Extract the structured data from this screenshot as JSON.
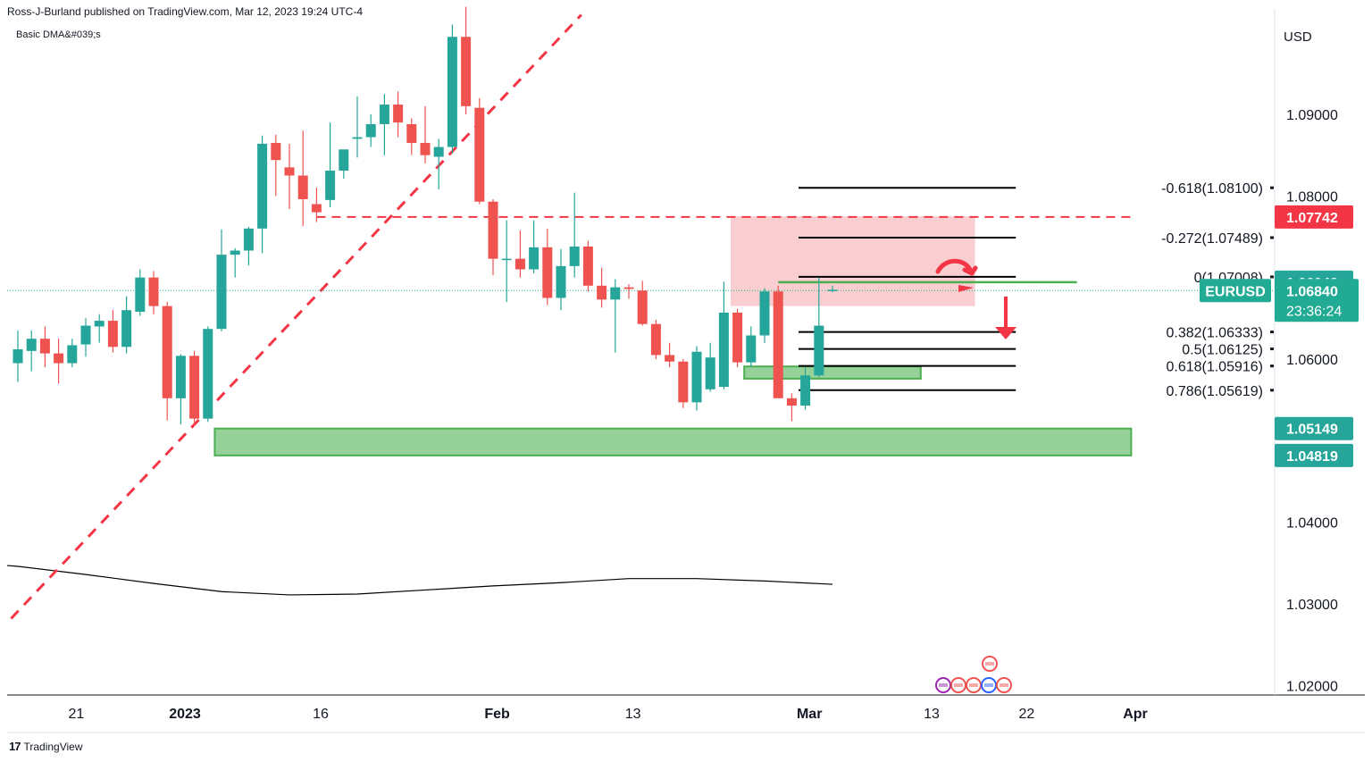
{
  "header": {
    "published": "Ross-J-Burland published on TradingView.com, Mar 12, 2023 19:24 UTC-4",
    "study": "Basic DMA&#039;s",
    "currency": "USD",
    "footer": "TradingView"
  },
  "colors": {
    "up": "#26a69a",
    "down": "#ef5350",
    "level_red": "#f23645",
    "zone_green": "#4caf50",
    "zone_red": "#f7c6c9",
    "ma": "#000000",
    "eurusd": "#22ab94"
  },
  "chart_data": {
    "type": "candlestick",
    "title": "",
    "symbol": "EURUSD",
    "timeframe": "daily",
    "ylim": [
      1.0175,
      1.1048
    ],
    "y_ticks": [
      {
        "value": 1.09,
        "label": "1.09000"
      },
      {
        "value": 1.08,
        "label": "1.08000"
      },
      {
        "value": 1.06,
        "label": "1.06000"
      },
      {
        "value": 1.04,
        "label": "1.04000"
      },
      {
        "value": 1.03,
        "label": "1.03000"
      },
      {
        "value": 1.02,
        "label": "1.02000"
      }
    ],
    "x_ticks": [
      {
        "index": 2,
        "label": "21"
      },
      {
        "index": 10,
        "label": "2023"
      },
      {
        "index": 20,
        "label": "16"
      },
      {
        "index": 33,
        "label": "Feb"
      },
      {
        "index": 43,
        "label": "13"
      },
      {
        "index": 56,
        "label": "Mar"
      },
      {
        "index": 65,
        "label": "13"
      },
      {
        "index": 72,
        "label": "22"
      },
      {
        "index": 80,
        "label": "Apr"
      }
    ],
    "candles": [
      {
        "i": 0,
        "o": 1.0595,
        "h": 1.0635,
        "l": 1.0572,
        "c": 1.0612
      },
      {
        "i": 1,
        "o": 1.061,
        "h": 1.0635,
        "l": 1.0585,
        "c": 1.0625
      },
      {
        "i": 2,
        "o": 1.0625,
        "h": 1.064,
        "l": 1.059,
        "c": 1.0607
      },
      {
        "i": 3,
        "o": 1.0607,
        "h": 1.0625,
        "l": 1.057,
        "c": 1.0595
      },
      {
        "i": 4,
        "o": 1.0595,
        "h": 1.0625,
        "l": 1.059,
        "c": 1.0617
      },
      {
        "i": 5,
        "o": 1.0618,
        "h": 1.065,
        "l": 1.0603,
        "c": 1.0641
      },
      {
        "i": 6,
        "o": 1.064,
        "h": 1.0655,
        "l": 1.062,
        "c": 1.0647
      },
      {
        "i": 7,
        "o": 1.0647,
        "h": 1.066,
        "l": 1.0608,
        "c": 1.0615
      },
      {
        "i": 8,
        "o": 1.0615,
        "h": 1.0677,
        "l": 1.0607,
        "c": 1.066
      },
      {
        "i": 9,
        "o": 1.0658,
        "h": 1.071,
        "l": 1.0653,
        "c": 1.07
      },
      {
        "i": 10,
        "o": 1.07,
        "h": 1.0708,
        "l": 1.0655,
        "c": 1.0665
      },
      {
        "i": 11,
        "o": 1.0665,
        "h": 1.067,
        "l": 1.0525,
        "c": 1.0552
      },
      {
        "i": 12,
        "o": 1.0552,
        "h": 1.0606,
        "l": 1.052,
        "c": 1.0604
      },
      {
        "i": 13,
        "o": 1.0604,
        "h": 1.061,
        "l": 1.0518,
        "c": 1.0527
      },
      {
        "i": 14,
        "o": 1.0527,
        "h": 1.064,
        "l": 1.0523,
        "c": 1.0637
      },
      {
        "i": 15,
        "o": 1.0637,
        "h": 1.0759,
        "l": 1.0634,
        "c": 1.0728
      },
      {
        "i": 16,
        "o": 1.0728,
        "h": 1.0736,
        "l": 1.07,
        "c": 1.0733
      },
      {
        "i": 17,
        "o": 1.0733,
        "h": 1.0762,
        "l": 1.0715,
        "c": 1.076
      },
      {
        "i": 18,
        "o": 1.076,
        "h": 1.0874,
        "l": 1.073,
        "c": 1.0864
      },
      {
        "i": 19,
        "o": 1.0865,
        "h": 1.0875,
        "l": 1.08,
        "c": 1.0844
      },
      {
        "i": 20,
        "o": 1.0835,
        "h": 1.0864,
        "l": 1.0784,
        "c": 1.0825
      },
      {
        "i": 21,
        "o": 1.0825,
        "h": 1.088,
        "l": 1.0763,
        "c": 1.0796
      },
      {
        "i": 22,
        "o": 1.079,
        "h": 1.081,
        "l": 1.0768,
        "c": 1.078
      },
      {
        "i": 23,
        "o": 1.0795,
        "h": 1.089,
        "l": 1.0786,
        "c": 1.0831
      },
      {
        "i": 24,
        "o": 1.0831,
        "h": 1.0855,
        "l": 1.0821,
        "c": 1.0857
      },
      {
        "i": 25,
        "o": 1.087,
        "h": 1.0922,
        "l": 1.0847,
        "c": 1.0872
      },
      {
        "i": 26,
        "o": 1.0872,
        "h": 1.09,
        "l": 1.086,
        "c": 1.0888
      },
      {
        "i": 27,
        "o": 1.0888,
        "h": 1.0925,
        "l": 1.085,
        "c": 1.0912
      },
      {
        "i": 28,
        "o": 1.0912,
        "h": 1.0928,
        "l": 1.0872,
        "c": 1.089
      },
      {
        "i": 29,
        "o": 1.0888,
        "h": 1.0895,
        "l": 1.085,
        "c": 1.0865
      },
      {
        "i": 30,
        "o": 1.0865,
        "h": 1.091,
        "l": 1.084,
        "c": 1.085
      },
      {
        "i": 31,
        "o": 1.0848,
        "h": 1.087,
        "l": 1.0808,
        "c": 1.086
      },
      {
        "i": 32,
        "o": 1.086,
        "h": 1.101,
        "l": 1.0852,
        "c": 1.0995
      },
      {
        "i": 33,
        "o": 1.0995,
        "h": 1.1032,
        "l": 1.09,
        "c": 1.091
      },
      {
        "i": 34,
        "o": 1.0908,
        "h": 1.092,
        "l": 1.079,
        "c": 1.0793
      },
      {
        "i": 35,
        "o": 1.0793,
        "h": 1.0796,
        "l": 1.0703,
        "c": 1.0723
      },
      {
        "i": 36,
        "o": 1.0723,
        "h": 1.077,
        "l": 1.067,
        "c": 1.0723
      },
      {
        "i": 37,
        "o": 1.0723,
        "h": 1.0758,
        "l": 1.07,
        "c": 1.071
      },
      {
        "i": 38,
        "o": 1.071,
        "h": 1.077,
        "l": 1.0705,
        "c": 1.0737
      },
      {
        "i": 39,
        "o": 1.0737,
        "h": 1.076,
        "l": 1.0666,
        "c": 1.0675
      },
      {
        "i": 40,
        "o": 1.0675,
        "h": 1.0735,
        "l": 1.066,
        "c": 1.0714
      },
      {
        "i": 41,
        "o": 1.0714,
        "h": 1.0804,
        "l": 1.07,
        "c": 1.0738
      },
      {
        "i": 42,
        "o": 1.0738,
        "h": 1.0745,
        "l": 1.0683,
        "c": 1.069
      },
      {
        "i": 43,
        "o": 1.069,
        "h": 1.0712,
        "l": 1.0663,
        "c": 1.0673
      },
      {
        "i": 44,
        "o": 1.0673,
        "h": 1.0698,
        "l": 1.0608,
        "c": 1.0688
      },
      {
        "i": 45,
        "o": 1.0688,
        "h": 1.0692,
        "l": 1.0674,
        "c": 1.0686
      },
      {
        "i": 46,
        "o": 1.0684,
        "h": 1.0696,
        "l": 1.0641,
        "c": 1.0643
      },
      {
        "i": 47,
        "o": 1.0643,
        "h": 1.0648,
        "l": 1.06,
        "c": 1.0605
      },
      {
        "i": 48,
        "o": 1.0605,
        "h": 1.062,
        "l": 1.059,
        "c": 1.0597
      },
      {
        "i": 49,
        "o": 1.0597,
        "h": 1.06,
        "l": 1.054,
        "c": 1.0547
      },
      {
        "i": 50,
        "o": 1.0547,
        "h": 1.0616,
        "l": 1.0537,
        "c": 1.0609
      },
      {
        "i": 51,
        "o": 1.0563,
        "h": 1.062,
        "l": 1.056,
        "c": 1.0602
      },
      {
        "i": 52,
        "o": 1.0566,
        "h": 1.0695,
        "l": 1.0563,
        "c": 1.0657
      },
      {
        "i": 53,
        "o": 1.0657,
        "h": 1.0662,
        "l": 1.059,
        "c": 1.0596
      },
      {
        "i": 54,
        "o": 1.0596,
        "h": 1.064,
        "l": 1.059,
        "c": 1.0629
      },
      {
        "i": 55,
        "o": 1.0629,
        "h": 1.0687,
        "l": 1.062,
        "c": 1.0683
      },
      {
        "i": 56,
        "o": 1.0683,
        "h": 1.069,
        "l": 1.0553,
        "c": 1.0552
      },
      {
        "i": 57,
        "o": 1.0552,
        "h": 1.0558,
        "l": 1.0524,
        "c": 1.0543
      },
      {
        "i": 58,
        "o": 1.0543,
        "h": 1.059,
        "l": 1.0538,
        "c": 1.058
      },
      {
        "i": 59,
        "o": 1.058,
        "h": 1.07,
        "l": 1.0578,
        "c": 1.0641
      },
      {
        "i": 60,
        "o": 1.0684,
        "h": 1.069,
        "l": 1.0682,
        "c": 1.0685
      }
    ],
    "moving_average": {
      "name": "Basic DMA&#039;s",
      "points": [
        {
          "i": 0,
          "v": 1.0346
        },
        {
          "i": 5,
          "v": 1.0336
        },
        {
          "i": 10,
          "v": 1.0325
        },
        {
          "i": 15,
          "v": 1.0315
        },
        {
          "i": 20,
          "v": 1.0311
        },
        {
          "i": 25,
          "v": 1.0312
        },
        {
          "i": 30,
          "v": 1.0317
        },
        {
          "i": 35,
          "v": 1.0322
        },
        {
          "i": 40,
          "v": 1.0326
        },
        {
          "i": 45,
          "v": 1.0331
        },
        {
          "i": 50,
          "v": 1.0331
        },
        {
          "i": 55,
          "v": 1.0328
        },
        {
          "i": 60,
          "v": 1.0324
        }
      ]
    },
    "trendline": {
      "from": {
        "i": -0.5,
        "v": 1.0282
      },
      "to": {
        "i": 41.5,
        "v": 1.1022
      },
      "style": "dashed"
    },
    "horizontal_lines": [
      {
        "value": 1.07742,
        "from_i": 22,
        "to_i": 82,
        "style": "dashed",
        "color": "#f23645"
      },
      {
        "value": 1.06943,
        "from_i": 56,
        "to_i": 78,
        "style": "solid",
        "color": "#4caf50"
      }
    ],
    "zones": [
      {
        "top": 1.05149,
        "bottom": 1.04819,
        "from_i": 14.5,
        "to_i": 82,
        "color": "green"
      },
      {
        "top": 1.0591,
        "bottom": 1.0576,
        "from_i": 53.5,
        "to_i": 66.5,
        "color": "green"
      },
      {
        "top": 1.0775,
        "bottom": 1.0665,
        "from_i": 52.5,
        "to_i": 70.5,
        "color": "red"
      }
    ],
    "fibonacci": [
      {
        "label": "-0.618(1.08100)",
        "value": 1.081
      },
      {
        "label": "-0.272(1.07489)",
        "value": 1.07489
      },
      {
        "label": "0(1.07008)",
        "value": 1.07008
      },
      {
        "label": "0.382(1.06333)",
        "value": 1.06333
      },
      {
        "label": "0.5(1.06125)",
        "value": 1.06125
      },
      {
        "label": "0.618(1.05916)",
        "value": 1.05916
      },
      {
        "label": "0.786(1.05619)",
        "value": 1.05619
      }
    ],
    "fib_range": {
      "from_i": 57.5,
      "to_i": 73.5
    },
    "price_labels": [
      {
        "value": 1.07742,
        "text": "1.07742",
        "bg": "#f23645"
      },
      {
        "value": 1.06943,
        "text": "1.06943",
        "bg": "#26a69a"
      },
      {
        "value": 1.05149,
        "text": "1.05149",
        "bg": "#26a69a"
      },
      {
        "value": 1.04819,
        "text": "1.04819",
        "bg": "#26a69a"
      }
    ],
    "current_price": {
      "value": 1.0684,
      "symbol": "EURUSD",
      "price": "1.06840",
      "countdown": "23:36:24"
    }
  }
}
